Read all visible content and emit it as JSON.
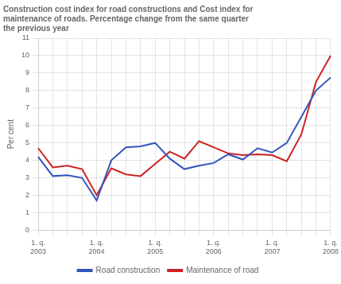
{
  "chart_data": {
    "type": "line",
    "title": "Construction cost index for road constructions and Cost index for\nmaintenance of roads. Percentage change from the same quarter\nthe previous year",
    "y_label": "Per cent",
    "categories": [
      "1. q.\n2003",
      null,
      null,
      null,
      "1. q.\n2004",
      null,
      null,
      null,
      "1. q.\n2005",
      null,
      null,
      null,
      "1. q.\n2006",
      null,
      null,
      null,
      "1. q.\n2007",
      null,
      null,
      null,
      "1. q.\n2008"
    ],
    "series": [
      {
        "name": "Road construction",
        "color": "#3355bb",
        "values": [
          4.2,
          3.1,
          3.15,
          3.0,
          1.7,
          4.0,
          4.75,
          4.8,
          5.0,
          4.1,
          3.5,
          3.7,
          3.85,
          4.35,
          4.05,
          4.7,
          4.45,
          5.0,
          6.5,
          8.0,
          8.75
        ]
      },
      {
        "name": "Maintenance of road",
        "color": "#cc2222",
        "values": [
          4.7,
          3.6,
          3.7,
          3.5,
          2.0,
          3.55,
          3.2,
          3.1,
          3.8,
          4.5,
          4.1,
          5.1,
          4.75,
          4.4,
          4.3,
          4.35,
          4.3,
          3.95,
          5.5,
          8.5,
          10.0
        ]
      }
    ],
    "ylim": [
      0,
      11
    ],
    "yticks": [
      0,
      1,
      2,
      3,
      4,
      5,
      6,
      7,
      8,
      9,
      10,
      11
    ],
    "grid": true,
    "legend": "bottom"
  }
}
